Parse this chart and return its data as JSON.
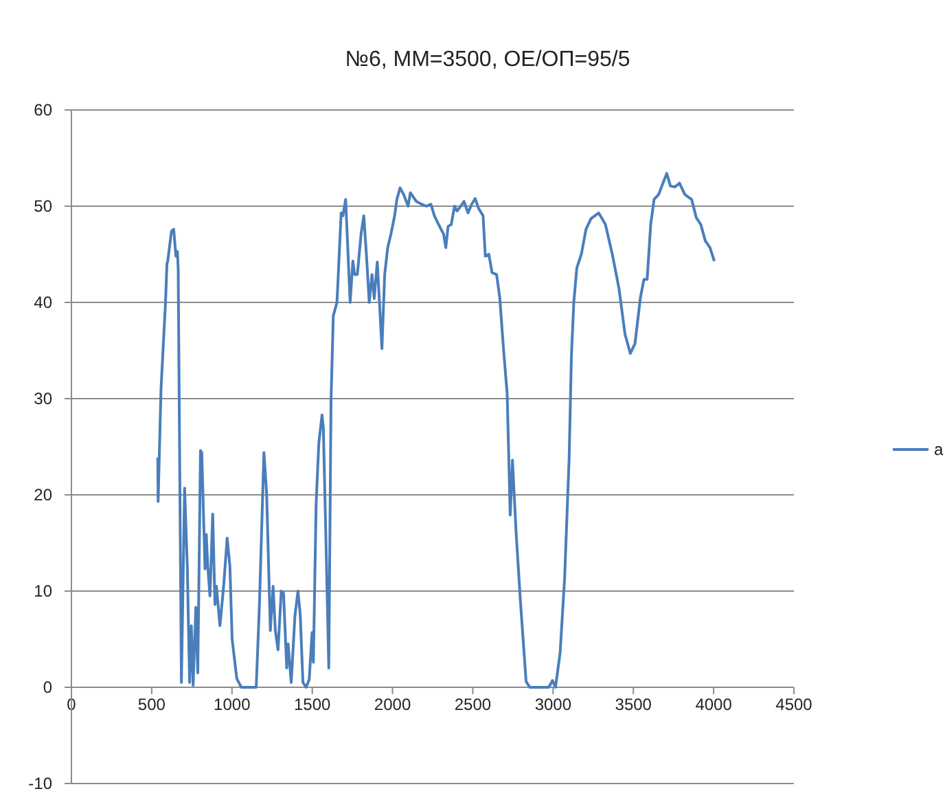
{
  "chart_data": {
    "type": "line",
    "title": "№6, ММ=3500, ОЕ/ОП=95/5",
    "xlim": [
      0,
      4500
    ],
    "xticks": [
      0,
      500,
      1000,
      1500,
      2000,
      2500,
      3000,
      3500,
      4000,
      4500
    ],
    "ylim": [
      -10,
      60
    ],
    "yticks": [
      -10,
      0,
      10,
      20,
      30,
      40,
      50,
      60
    ],
    "grid": "y",
    "legend": "right",
    "series": [
      {
        "name": "a",
        "color": "#4a7ebb",
        "x": [
          538,
          540,
          558,
          586,
          595,
          600,
          623,
          637,
          651,
          660,
          665,
          685,
          705,
          722,
          736,
          747,
          758,
          775,
          787,
          804,
          812,
          832,
          840,
          849,
          863,
          880,
          894,
          903,
          925,
          948,
          970,
          987,
          1001,
          1030,
          1058,
          1151,
          1171,
          1199,
          1216,
          1239,
          1256,
          1270,
          1287,
          1307,
          1321,
          1341,
          1350,
          1369,
          1392,
          1411,
          1425,
          1442,
          1462,
          1481,
          1499,
          1507,
          1524,
          1541,
          1561,
          1569,
          1589,
          1603,
          1617,
          1631,
          1654,
          1680,
          1691,
          1708,
          1736,
          1753,
          1764,
          1781,
          1804,
          1821,
          1838,
          1855,
          1872,
          1886,
          1905,
          1917,
          1934,
          1951,
          1970,
          1990,
          2013,
          2027,
          2047,
          2070,
          2097,
          2111,
          2148,
          2182,
          2210,
          2239,
          2261,
          2281,
          2318,
          2332,
          2346,
          2366,
          2386,
          2402,
          2425,
          2445,
          2470,
          2493,
          2515,
          2535,
          2564,
          2578,
          2600,
          2620,
          2648,
          2668,
          2691,
          2714,
          2733,
          2747,
          2770,
          2798,
          2832,
          2855,
          2973,
          2996,
          3015,
          3044,
          3072,
          3100,
          3114,
          3129,
          3148,
          3176,
          3205,
          3236,
          3284,
          3326,
          3369,
          3411,
          3448,
          3481,
          3510,
          3544,
          3566,
          3586,
          3608,
          3629,
          3657,
          3689,
          3708,
          3731,
          3759,
          3787,
          3821,
          3863,
          3892,
          3920,
          3948,
          3977,
          4004
        ],
        "values": [
          23.9,
          19.3,
          31,
          40,
          44,
          44.3,
          47.4,
          47.6,
          44.8,
          45.3,
          43.5,
          0.5,
          20.7,
          12.4,
          0.5,
          6.4,
          0.2,
          8.3,
          1.5,
          24.6,
          24.4,
          12.3,
          15.9,
          12.6,
          9.5,
          18,
          8.6,
          10.5,
          6.4,
          10.5,
          15.5,
          12.6,
          5,
          0.9,
          0,
          0,
          8.6,
          24.4,
          20.1,
          5.9,
          10.5,
          5.9,
          3.9,
          10,
          9.8,
          2,
          4.5,
          0.5,
          7.4,
          10,
          7.6,
          0.5,
          0,
          0.8,
          5.7,
          2.6,
          19,
          25.4,
          28.3,
          27,
          12.6,
          2,
          29.8,
          38.6,
          40,
          49.3,
          49,
          50.7,
          40,
          44.3,
          42.9,
          42.9,
          47.1,
          49,
          44.8,
          40,
          42.9,
          40.4,
          44.2,
          40.5,
          35.2,
          42.9,
          45.7,
          47.1,
          49,
          50.7,
          51.9,
          51.2,
          50,
          51.4,
          50.5,
          50.2,
          50,
          50.2,
          49,
          48.3,
          47.1,
          45.7,
          47.9,
          48.1,
          50,
          49.5,
          50,
          50.5,
          49.3,
          50.2,
          50.8,
          49.8,
          49,
          44.8,
          45,
          43.1,
          42.9,
          40.5,
          35.2,
          30.5,
          17.9,
          23.6,
          16,
          8.6,
          0.6,
          0,
          0,
          0.7,
          0,
          3.6,
          11.4,
          23.8,
          34.3,
          40,
          43.6,
          45,
          47.6,
          48.7,
          49.3,
          48.1,
          45,
          41.4,
          36.7,
          34.7,
          35.7,
          40.5,
          42.4,
          42.4,
          48.1,
          50.7,
          51.2,
          52.6,
          53.4,
          52.1,
          52,
          52.4,
          51.2,
          50.7,
          48.8,
          48.1,
          46.4,
          45.7,
          44.3
        ]
      }
    ]
  }
}
